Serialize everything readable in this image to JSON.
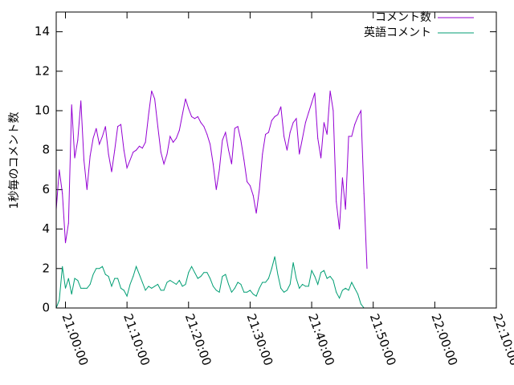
{
  "chart_data": {
    "type": "line",
    "ylabel": "1秒毎のコメント数",
    "xlabel": "",
    "ylim": [
      0,
      15
    ],
    "xlim": [
      "20:58:30",
      "22:10:00"
    ],
    "grid": false,
    "legend_position": "top-right",
    "y_ticks": [
      "0",
      "2",
      "4",
      "6",
      "8",
      "10",
      "12",
      "14"
    ],
    "x_ticks": [
      "21:00:00",
      "21:10:00",
      "21:20:00",
      "21:30:00",
      "21:40:00",
      "21:50:00",
      "22:00:00",
      "22:10:00"
    ],
    "x_times": [
      "20:58:30",
      "20:59:00",
      "20:59:30",
      "21:00:00",
      "21:00:30",
      "21:01:00",
      "21:01:30",
      "21:02:00",
      "21:02:30",
      "21:03:00",
      "21:03:30",
      "21:04:00",
      "21:04:30",
      "21:05:00",
      "21:05:30",
      "21:06:00",
      "21:06:30",
      "21:07:00",
      "21:07:30",
      "21:08:00",
      "21:08:30",
      "21:09:00",
      "21:09:30",
      "21:10:00",
      "21:10:30",
      "21:11:00",
      "21:11:30",
      "21:12:00",
      "21:12:30",
      "21:13:00",
      "21:13:30",
      "21:14:00",
      "21:14:30",
      "21:15:00",
      "21:15:30",
      "21:16:00",
      "21:16:30",
      "21:17:00",
      "21:17:30",
      "21:18:00",
      "21:18:30",
      "21:19:00",
      "21:19:30",
      "21:20:00",
      "21:20:30",
      "21:21:00",
      "21:21:30",
      "21:22:00",
      "21:22:30",
      "21:23:00",
      "21:23:30",
      "21:24:00",
      "21:24:30",
      "21:25:00",
      "21:25:30",
      "21:26:00",
      "21:26:30",
      "21:27:00",
      "21:27:30",
      "21:28:00",
      "21:28:30",
      "21:29:00",
      "21:29:30",
      "21:30:00",
      "21:30:30",
      "21:31:00",
      "21:31:30",
      "21:32:00",
      "21:32:30",
      "21:33:00",
      "21:33:30",
      "21:34:00",
      "21:34:30",
      "21:35:00",
      "21:35:30",
      "21:36:00",
      "21:36:30",
      "21:37:00",
      "21:37:30",
      "21:38:00",
      "21:38:30",
      "21:39:00",
      "21:39:30",
      "21:40:00",
      "21:40:30",
      "21:41:00",
      "21:41:30",
      "21:42:00",
      "21:42:30",
      "21:43:00",
      "21:43:30",
      "21:44:00",
      "21:44:30",
      "21:45:00",
      "21:45:30",
      "21:46:00",
      "21:46:30",
      "21:47:00",
      "21:47:30",
      "21:48:00",
      "21:48:30",
      "21:49:00",
      "21:49:30",
      "21:50:00",
      "21:50:30",
      "21:51:00",
      "21:51:30",
      "21:52:00",
      "21:52:30",
      "21:53:00",
      "21:53:30",
      "21:54:00",
      "21:54:30",
      "21:55:00",
      "21:55:30",
      "21:56:00",
      "21:56:30",
      "21:57:00",
      "21:57:30",
      "21:58:00",
      "21:58:30",
      "21:59:00",
      "21:59:30",
      "22:00:00",
      "22:00:30",
      "22:01:00",
      "22:01:30",
      "22:02:00",
      "22:02:30",
      "22:03:00",
      "22:03:30",
      "22:04:00",
      "22:04:30",
      "22:05:00",
      "22:05:30",
      "22:06:00",
      "22:06:30",
      "22:07:00",
      "22:07:30",
      "22:08:00",
      "22:08:30",
      "22:09:00",
      "22:09:30",
      "22:10:00"
    ],
    "series": [
      {
        "name": "コメント数",
        "color": "#9400d3",
        "points": [
          [
            "20:58:30",
            5.0
          ],
          [
            "20:59:00",
            7.0
          ],
          [
            "20:59:30",
            5.8
          ],
          [
            "21:00:00",
            3.3
          ],
          [
            "21:00:30",
            4.3
          ],
          [
            "21:01:00",
            10.3
          ],
          [
            "21:01:30",
            7.6
          ],
          [
            "21:02:00",
            8.5
          ],
          [
            "21:02:30",
            10.5
          ],
          [
            "21:03:00",
            7.5
          ],
          [
            "21:03:30",
            6.0
          ],
          [
            "21:04:00",
            7.7
          ],
          [
            "21:04:30",
            8.6
          ],
          [
            "21:05:00",
            9.1
          ],
          [
            "21:05:30",
            8.3
          ],
          [
            "21:06:00",
            8.7
          ],
          [
            "21:06:30",
            9.2
          ],
          [
            "21:07:00",
            7.8
          ],
          [
            "21:07:30",
            6.9
          ],
          [
            "21:08:00",
            8.0
          ],
          [
            "21:08:30",
            9.2
          ],
          [
            "21:09:00",
            9.3
          ],
          [
            "21:09:30",
            8.0
          ],
          [
            "21:10:00",
            7.1
          ],
          [
            "21:10:30",
            7.5
          ],
          [
            "21:11:00",
            7.9
          ],
          [
            "21:11:30",
            8.0
          ],
          [
            "21:12:00",
            8.2
          ],
          [
            "21:12:30",
            8.1
          ],
          [
            "21:13:00",
            8.4
          ],
          [
            "21:13:30",
            9.8
          ],
          [
            "21:14:00",
            11.0
          ],
          [
            "21:14:30",
            10.6
          ],
          [
            "21:15:00",
            9.2
          ],
          [
            "21:15:30",
            7.9
          ],
          [
            "21:16:00",
            7.3
          ],
          [
            "21:16:30",
            7.8
          ],
          [
            "21:17:00",
            8.7
          ],
          [
            "21:17:30",
            8.4
          ],
          [
            "21:18:00",
            8.6
          ],
          [
            "21:18:30",
            9.0
          ],
          [
            "21:19:00",
            9.8
          ],
          [
            "21:19:30",
            10.6
          ],
          [
            "21:20:00",
            10.1
          ],
          [
            "21:20:30",
            9.7
          ],
          [
            "21:21:00",
            9.6
          ],
          [
            "21:21:30",
            9.7
          ],
          [
            "21:22:00",
            9.4
          ],
          [
            "21:22:30",
            9.2
          ],
          [
            "21:23:00",
            8.8
          ],
          [
            "21:23:30",
            8.3
          ],
          [
            "21:24:00",
            7.3
          ],
          [
            "21:24:30",
            6.0
          ],
          [
            "21:25:00",
            7.0
          ],
          [
            "21:25:30",
            8.5
          ],
          [
            "21:26:00",
            8.9
          ],
          [
            "21:26:30",
            8.0
          ],
          [
            "21:27:00",
            7.3
          ],
          [
            "21:27:30",
            9.1
          ],
          [
            "21:28:00",
            9.2
          ],
          [
            "21:28:30",
            8.5
          ],
          [
            "21:29:00",
            7.5
          ],
          [
            "21:29:30",
            6.4
          ],
          [
            "21:30:00",
            6.2
          ],
          [
            "21:30:30",
            5.7
          ],
          [
            "21:31:00",
            4.8
          ],
          [
            "21:31:30",
            6.0
          ],
          [
            "21:32:00",
            7.8
          ],
          [
            "21:32:30",
            8.8
          ],
          [
            "21:33:00",
            8.9
          ],
          [
            "21:33:30",
            9.5
          ],
          [
            "21:34:00",
            9.7
          ],
          [
            "21:34:30",
            9.8
          ],
          [
            "21:35:00",
            10.2
          ],
          [
            "21:35:30",
            8.7
          ],
          [
            "21:36:00",
            8.0
          ],
          [
            "21:36:30",
            8.9
          ],
          [
            "21:37:00",
            9.4
          ],
          [
            "21:37:30",
            9.6
          ],
          [
            "21:38:00",
            7.8
          ],
          [
            "21:38:30",
            8.6
          ],
          [
            "21:39:00",
            9.4
          ],
          [
            "21:39:30",
            9.9
          ],
          [
            "21:40:00",
            10.4
          ],
          [
            "21:40:30",
            10.9
          ],
          [
            "21:41:00",
            8.6
          ],
          [
            "21:41:30",
            7.6
          ],
          [
            "21:42:00",
            9.4
          ],
          [
            "21:42:30",
            8.8
          ],
          [
            "21:43:00",
            11.0
          ],
          [
            "21:43:30",
            10.0
          ],
          [
            "21:44:00",
            5.4
          ],
          [
            "21:44:30",
            4.0
          ],
          [
            "21:45:00",
            6.6
          ],
          [
            "21:45:30",
            5.0
          ],
          [
            "21:46:00",
            8.7
          ],
          [
            "21:46:30",
            8.7
          ],
          [
            "21:47:00",
            9.3
          ],
          [
            "21:47:30",
            9.7
          ],
          [
            "21:48:00",
            10.0
          ],
          [
            "21:48:30",
            5.8
          ],
          [
            "21:49:00",
            2.0
          ]
        ]
      },
      {
        "name": "英語コメント",
        "color": "#009e73",
        "points": [
          [
            "20:58:30",
            0.0
          ],
          [
            "20:59:00",
            0.4
          ],
          [
            "20:59:30",
            2.1
          ],
          [
            "21:00:00",
            1.0
          ],
          [
            "21:00:30",
            1.5
          ],
          [
            "21:01:00",
            0.7
          ],
          [
            "21:01:30",
            1.5
          ],
          [
            "21:02:00",
            1.4
          ],
          [
            "21:02:30",
            1.0
          ],
          [
            "21:03:00",
            1.0
          ],
          [
            "21:03:30",
            1.0
          ],
          [
            "21:04:00",
            1.2
          ],
          [
            "21:04:30",
            1.7
          ],
          [
            "21:05:00",
            2.0
          ],
          [
            "21:05:30",
            2.0
          ],
          [
            "21:06:00",
            2.1
          ],
          [
            "21:06:30",
            1.7
          ],
          [
            "21:07:00",
            1.6
          ],
          [
            "21:07:30",
            1.1
          ],
          [
            "21:08:00",
            1.5
          ],
          [
            "21:08:30",
            1.5
          ],
          [
            "21:09:00",
            1.0
          ],
          [
            "21:09:30",
            0.9
          ],
          [
            "21:10:00",
            0.6
          ],
          [
            "21:10:30",
            1.2
          ],
          [
            "21:11:00",
            1.6
          ],
          [
            "21:11:30",
            2.1
          ],
          [
            "21:12:00",
            1.7
          ],
          [
            "21:12:30",
            1.3
          ],
          [
            "21:13:00",
            0.9
          ],
          [
            "21:13:30",
            1.1
          ],
          [
            "21:14:00",
            1.0
          ],
          [
            "21:14:30",
            1.1
          ],
          [
            "21:15:00",
            1.2
          ],
          [
            "21:15:30",
            0.9
          ],
          [
            "21:16:00",
            0.9
          ],
          [
            "21:16:30",
            1.3
          ],
          [
            "21:17:00",
            1.4
          ],
          [
            "21:17:30",
            1.3
          ],
          [
            "21:18:00",
            1.2
          ],
          [
            "21:18:30",
            1.4
          ],
          [
            "21:19:00",
            1.1
          ],
          [
            "21:19:30",
            1.2
          ],
          [
            "21:20:00",
            1.8
          ],
          [
            "21:20:30",
            2.1
          ],
          [
            "21:21:00",
            1.8
          ],
          [
            "21:21:30",
            1.5
          ],
          [
            "21:22:00",
            1.6
          ],
          [
            "21:22:30",
            1.8
          ],
          [
            "21:23:00",
            1.8
          ],
          [
            "21:23:30",
            1.5
          ],
          [
            "21:24:00",
            1.1
          ],
          [
            "21:24:30",
            0.9
          ],
          [
            "21:25:00",
            0.8
          ],
          [
            "21:25:30",
            1.6
          ],
          [
            "21:26:00",
            1.7
          ],
          [
            "21:26:30",
            1.2
          ],
          [
            "21:27:00",
            0.8
          ],
          [
            "21:27:30",
            1.0
          ],
          [
            "21:28:00",
            1.3
          ],
          [
            "21:28:30",
            1.2
          ],
          [
            "21:29:00",
            0.8
          ],
          [
            "21:29:30",
            0.8
          ],
          [
            "21:30:00",
            0.9
          ],
          [
            "21:30:30",
            0.7
          ],
          [
            "21:31:00",
            0.6
          ],
          [
            "21:31:30",
            1.0
          ],
          [
            "21:32:00",
            1.3
          ],
          [
            "21:32:30",
            1.3
          ],
          [
            "21:33:00",
            1.5
          ],
          [
            "21:33:30",
            2.0
          ],
          [
            "21:34:00",
            2.6
          ],
          [
            "21:34:30",
            1.7
          ],
          [
            "21:35:00",
            1.0
          ],
          [
            "21:35:30",
            0.8
          ],
          [
            "21:36:00",
            0.9
          ],
          [
            "21:36:30",
            1.2
          ],
          [
            "21:37:00",
            2.3
          ],
          [
            "21:37:30",
            1.5
          ],
          [
            "21:38:00",
            1.0
          ],
          [
            "21:38:30",
            1.2
          ],
          [
            "21:39:00",
            1.1
          ],
          [
            "21:39:30",
            1.1
          ],
          [
            "21:40:00",
            1.9
          ],
          [
            "21:40:30",
            1.6
          ],
          [
            "21:41:00",
            1.2
          ],
          [
            "21:41:30",
            1.8
          ],
          [
            "21:42:00",
            1.9
          ],
          [
            "21:42:30",
            1.5
          ],
          [
            "21:43:00",
            1.6
          ],
          [
            "21:43:30",
            1.4
          ],
          [
            "21:44:00",
            0.8
          ],
          [
            "21:44:30",
            0.5
          ],
          [
            "21:45:00",
            0.9
          ],
          [
            "21:45:30",
            1.0
          ],
          [
            "21:46:00",
            0.9
          ],
          [
            "21:46:30",
            1.3
          ],
          [
            "21:47:00",
            1.0
          ],
          [
            "21:47:30",
            0.7
          ],
          [
            "21:48:00",
            0.2
          ],
          [
            "21:48:30",
            0.0
          ],
          [
            "21:49:00",
            0.0
          ]
        ]
      }
    ]
  }
}
